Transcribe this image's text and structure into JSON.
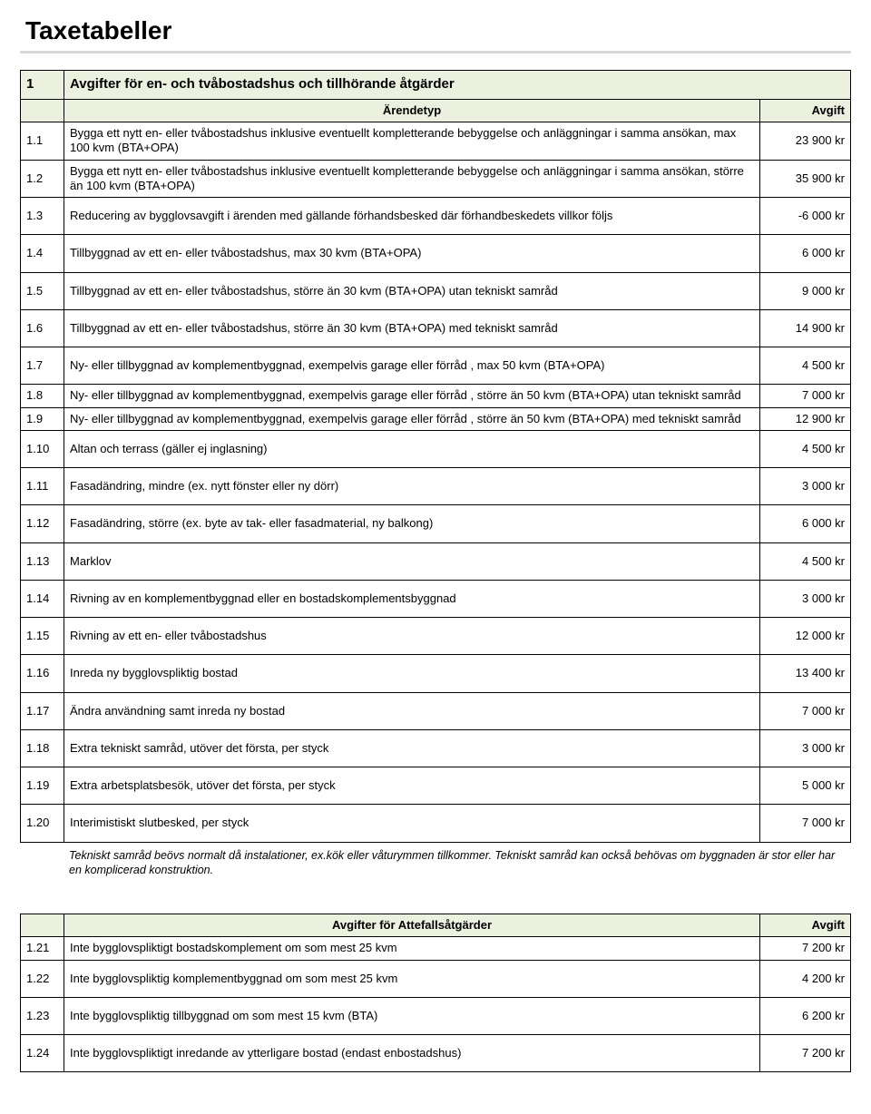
{
  "page_title": "Taxetabeller",
  "colors": {
    "header_bg": "#ebf1de",
    "title_underline": "#9bbb59",
    "border": "#000000",
    "text": "#000000",
    "bg": "#ffffff"
  },
  "table1": {
    "section_num": "1",
    "section_title": "Avgifter för en- och tvåbostadshus och tillhörande åtgärder",
    "col_desc": "Ärendetyp",
    "col_fee": "Avgift",
    "rows": [
      {
        "id": "1.1",
        "desc": "Bygga ett nytt en- eller tvåbostadshus inklusive eventuellt kompletterande bebyggelse och anläggningar i samma ansökan, max 100 kvm (BTA+OPA)",
        "fee": "23 900 kr"
      },
      {
        "id": "1.2",
        "desc": "Bygga ett nytt en- eller tvåbostadshus inklusive eventuellt kompletterande bebyggelse och anläggningar i samma ansökan, större än 100 kvm (BTA+OPA)",
        "fee": "35 900 kr"
      },
      {
        "id": "1.3",
        "desc": "Reducering av bygglovsavgift i ärenden med gällande förhandsbesked där förhandbeskedets villkor följs",
        "fee": "-6 000 kr",
        "sp": true
      },
      {
        "id": "1.4",
        "desc": "Tillbyggnad av ett en- eller tvåbostadshus, max 30 kvm (BTA+OPA)",
        "fee": "6 000 kr",
        "sp": true
      },
      {
        "id": "1.5",
        "desc": "Tillbyggnad av ett en- eller tvåbostadshus, större än 30 kvm (BTA+OPA) utan tekniskt samråd",
        "fee": "9 000 kr",
        "sp": true
      },
      {
        "id": "1.6",
        "desc": "Tillbyggnad av ett en- eller tvåbostadshus, större än 30 kvm (BTA+OPA) med tekniskt samråd",
        "fee": "14 900 kr",
        "sp": true
      },
      {
        "id": "1.7",
        "desc": "Ny- eller tillbyggnad av komplementbyggnad, exempelvis garage eller förråd , max 50 kvm (BTA+OPA)",
        "fee": "4 500 kr",
        "sp": true
      },
      {
        "id": "1.8",
        "desc": "Ny- eller tillbyggnad av komplementbyggnad, exempelvis garage eller förråd , större än 50 kvm (BTA+OPA) utan tekniskt samråd",
        "fee": "7 000 kr"
      },
      {
        "id": "1.9",
        "desc": "Ny- eller tillbyggnad av komplementbyggnad, exempelvis garage eller förråd , större än 50 kvm (BTA+OPA) med tekniskt samråd",
        "fee": "12 900 kr"
      },
      {
        "id": "1.10",
        "desc": "Altan och terrass (gäller ej inglasning)",
        "fee": "4 500 kr",
        "sp": true
      },
      {
        "id": "1.11",
        "desc": "Fasadändring, mindre (ex. nytt fönster eller ny dörr)",
        "fee": "3 000 kr",
        "sp": true
      },
      {
        "id": "1.12",
        "desc": "Fasadändring, större (ex. byte av tak- eller fasadmaterial, ny balkong)",
        "fee": "6 000 kr",
        "sp": true
      },
      {
        "id": "1.13",
        "desc": "Marklov",
        "fee": "4 500 kr",
        "sp": true
      },
      {
        "id": "1.14",
        "desc": "Rivning av en komplementbyggnad eller en bostadskomplementsbyggnad",
        "fee": "3 000 kr",
        "sp": true
      },
      {
        "id": "1.15",
        "desc": "Rivning av ett en- eller tvåbostadshus",
        "fee": "12 000 kr",
        "sp": true
      },
      {
        "id": "1.16",
        "desc": "Inreda ny bygglovspliktig bostad",
        "fee": "13 400 kr",
        "sp": true
      },
      {
        "id": "1.17",
        "desc": "Ändra användning samt inreda ny bostad",
        "fee": "7 000 kr",
        "sp": true
      },
      {
        "id": "1.18",
        "desc": "Extra tekniskt samråd, utöver det första, per styck",
        "fee": "3 000 kr",
        "sp": true
      },
      {
        "id": "1.19",
        "desc": "Extra arbetsplatsbesök, utöver det första, per styck",
        "fee": "5 000 kr",
        "sp": true
      },
      {
        "id": "1.20",
        "desc": "Interimistiskt slutbesked, per styck",
        "fee": "7 000 kr",
        "sp": true
      }
    ],
    "footnote": "Tekniskt samråd beövs normalt då instalationer, ex.kök eller våturymmen tillkommer. Tekniskt samråd kan också behövas om byggnaden är stor eller har en komplicerad konstruktion."
  },
  "table2": {
    "col_desc": "Avgifter för Attefallsåtgärder",
    "col_fee": "Avgift",
    "rows": [
      {
        "id": "1.21",
        "desc": "Inte bygglovspliktigt bostadskomplement om som mest 25 kvm",
        "fee": "7 200 kr"
      },
      {
        "id": "1.22",
        "desc": "Inte bygglovspliktig komplementbyggnad om som mest 25 kvm",
        "fee": "4 200 kr",
        "sp": true
      },
      {
        "id": "1.23",
        "desc": "Inte bygglovspliktig tillbyggnad om som mest 15 kvm (BTA)",
        "fee": "6 200 kr",
        "sp": true
      },
      {
        "id": "1.24",
        "desc": "Inte bygglovspliktigt inredande av ytterligare bostad (endast enbostadshus)",
        "fee": "7 200 kr",
        "sp": true
      }
    ]
  }
}
